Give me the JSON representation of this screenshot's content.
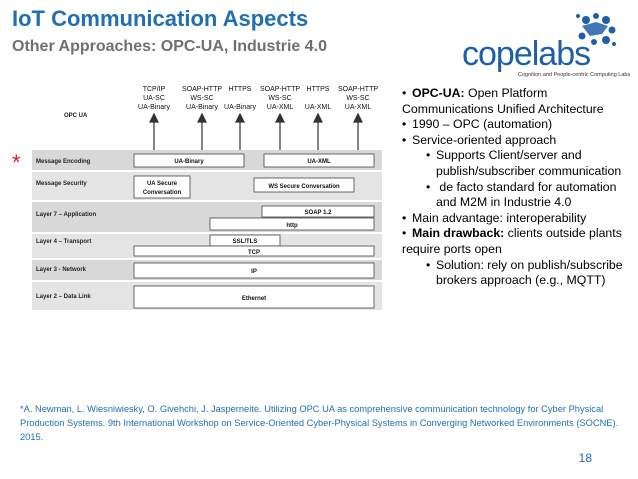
{
  "slide": {
    "title": "IoT Communication Aspects",
    "subtitle": "Other Approaches: OPC-UA, Industrie 4.0",
    "page_number": "18",
    "star": "*"
  },
  "logo": {
    "wordmark": "copelabs",
    "tagline": "Cognition and People-centric Computing Labs",
    "accent": "#1f5fa8"
  },
  "diagram": {
    "corner_label": "OPC UA",
    "top_labels": [
      "TCP/IP",
      "UA-SC",
      "UA-Binary",
      "SOAP-HTTP",
      "WS-SC",
      "UA-Binary",
      "HTTPS",
      "UA-Binary",
      "SOAP-HTTP",
      "WS-SC",
      "UA-XML",
      "HTTPS",
      "UA-XML",
      "SOAP-HTTP",
      "WS-SC",
      "UA-XML"
    ],
    "layers": [
      "Message Encoding",
      "Message Security",
      "Layer 7 – Application",
      "Layer 4 – Transport",
      "Layer 3 - Network",
      "Layer 2 – Data Link"
    ],
    "boxes": [
      "UA-Binary",
      "UA-XML",
      "UA Secure",
      "Conversation",
      "WS Secure Conversation",
      "SOAP 1.2",
      "http",
      "SSL/TLS",
      "TCP",
      "IP",
      "Ethernet"
    ]
  },
  "bullets": {
    "opc_ua_label": "OPC-UA:",
    "opc_ua_text": " Open Platform Communications Unified Architecture",
    "year": "1990 – OPC (automation)",
    "service": "Service-oriented approach",
    "sub1": "Supports Client/server and publish/subscriber communication",
    "sub2": " de facto standard for automation and M2M in Industrie 4.0",
    "advantage": "Main advantage: interoperability",
    "drawback_label": "Main drawback:",
    "drawback_text": " clients outside plants require ports open",
    "solution": "Solution: rely on publish/subscribe brokers approach (e.g., MQTT)"
  },
  "citation": {
    "authors": "*A. Newman, L. Wiesniwiesky, O. Givehchi, J. Jasperneite.",
    "title": " Utilizing OPC UA as comprehensive communication technology",
    "venue": " for Cyber Physical Production Systems. 9th International Workshop on Service-Oriented Cyber-Physical Systems in Converging Networked Environments (SOCNE). 2015."
  }
}
